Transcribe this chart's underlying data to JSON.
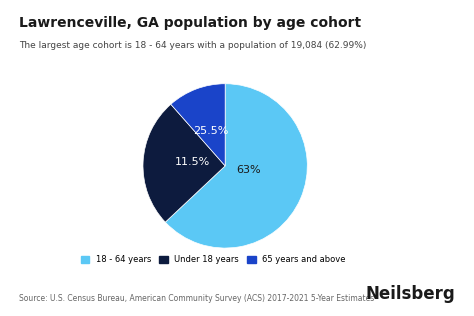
{
  "title": "Lawrenceville, GA population by age cohort",
  "subtitle": "The largest age cohort is 18 - 64 years with a population of 19,084 (62.99%)",
  "slices": [
    62.99,
    25.51,
    11.5
  ],
  "labels": [
    "63%",
    "25.5%",
    "11.5%"
  ],
  "colors": [
    "#5bc8f5",
    "#0d1b3e",
    "#1a44c9"
  ],
  "legend_labels": [
    "18 - 64 years",
    "Under 18 years",
    "65 years and above"
  ],
  "legend_colors": [
    "#5bc8f5",
    "#0d1b3e",
    "#1a44c9"
  ],
  "source_text": "Source: U.S. Census Bureau, American Community Survey (ACS) 2017-2021 5-Year Estimates",
  "brand_text": "Neilsberg",
  "background_color": "#ffffff",
  "label_colors": [
    "#1a1a1a",
    "#ffffff",
    "#ffffff"
  ],
  "startangle": 90
}
